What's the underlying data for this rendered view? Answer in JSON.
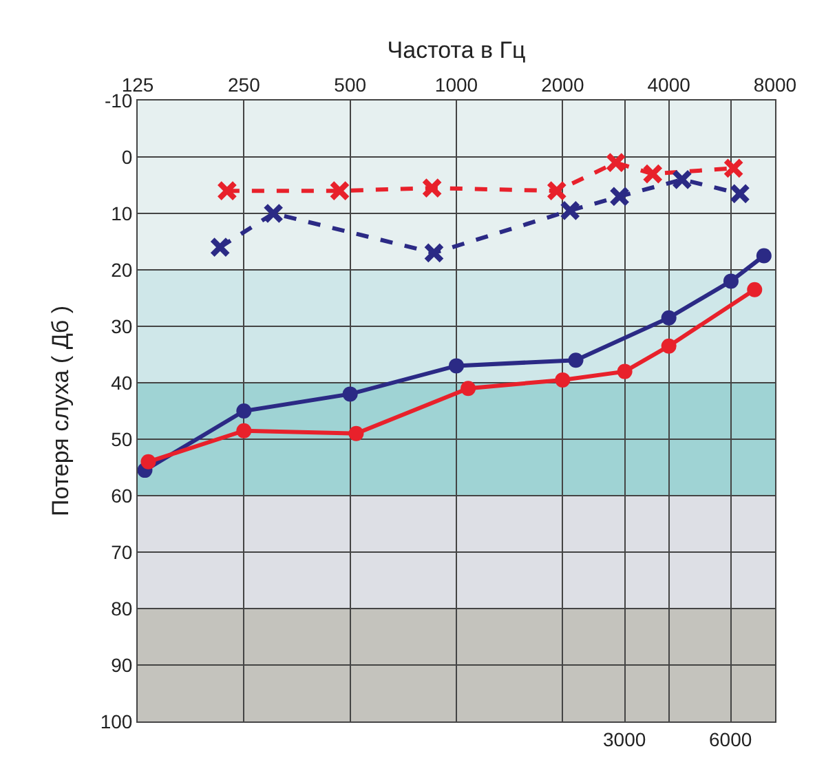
{
  "chart_data": {
    "type": "line",
    "xlabel": "Частота в Гц",
    "ylabel": "Потеря слуха ( Дб )",
    "log": "x",
    "xlim": [
      125,
      8000
    ],
    "ylim": [
      100,
      -10
    ],
    "xticks": [
      125,
      250,
      500,
      1000,
      2000,
      {
        "value": 3000,
        "label": null
      },
      4000,
      {
        "value": 6000,
        "label": null
      },
      8000
    ],
    "annotations": [
      {
        "text": "3000",
        "x": 3000,
        "y": 100
      },
      {
        "text": "6000",
        "x": 6000,
        "y": 100
      }
    ],
    "yticks": [
      -10,
      0,
      10,
      20,
      30,
      40,
      50,
      60,
      70,
      80,
      90,
      100
    ],
    "grid": true,
    "series": [
      {
        "color": "#e8212b",
        "marker": "cross",
        "line_style": "dashed",
        "x": [
          224,
          467,
          853,
          1925,
          2830,
          3600,
          6100
        ],
        "values": [
          6,
          6,
          5.5,
          6,
          1,
          3,
          2
        ]
      },
      {
        "color": "#2b2a85",
        "marker": "cross",
        "line_style": "dashed",
        "x": [
          214,
          303,
          864,
          2100,
          2900,
          4360,
          6360
        ],
        "values": [
          16,
          10,
          17,
          9.5,
          7,
          4,
          6.5
        ]
      },
      {
        "color": "#2b2a85",
        "marker": "circle",
        "line_style": "solid",
        "x": [
          131,
          250,
          500,
          1000,
          2180,
          4000,
          6000,
          7440
        ],
        "values": [
          55.5,
          45,
          42,
          37,
          36,
          28.5,
          22,
          17.5
        ]
      },
      {
        "color": "#e8212b",
        "marker": "circle",
        "line_style": "solid",
        "x": [
          134,
          250,
          520,
          1080,
          2000,
          3000,
          4000,
          7000
        ],
        "values": [
          54,
          48.5,
          49,
          41,
          39.5,
          38,
          33.5,
          23.5
        ]
      }
    ],
    "bands": [
      {
        "axis": "y",
        "from": -10,
        "to": 20,
        "color": "#e6f0f0"
      },
      {
        "axis": "y",
        "from": 20,
        "to": 40,
        "color": "#cfe7e9"
      },
      {
        "axis": "y",
        "from": 40,
        "to": 60,
        "color": "#9fd3d4"
      },
      {
        "axis": "y",
        "from": 60,
        "to": 80,
        "color": "#dddfe5"
      },
      {
        "axis": "y",
        "from": 80,
        "to": 100,
        "color": "#c4c3bd"
      }
    ]
  }
}
